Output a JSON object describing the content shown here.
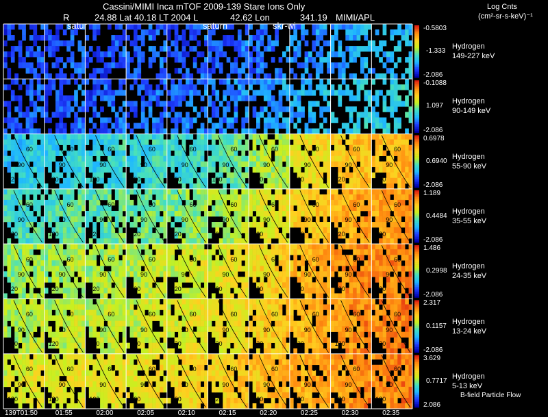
{
  "header": {
    "title": "Cassini/MIMI Inca mTOF  2009-139   Stare   Ions Only",
    "r_label": "R",
    "lat_text": "24.88 Lat 40.18 LT 2004 L",
    "lon_text": "42.62 Lon",
    "value_text": "341.19",
    "source": "MIMI/APL",
    "marker_saturn_1": "satur",
    "marker_saturn_2": "saturn",
    "marker_skr": "skr-wi",
    "units_title": "Log Cnts",
    "units": "(cm²-sr-s-keV)⁻¹",
    "footer_note": "B-field Particle Flow"
  },
  "colors": {
    "scale": [
      "#0000aa",
      "#1f3fff",
      "#1fb8ff",
      "#44e0c0",
      "#c8f020",
      "#ffd020",
      "#ff8c10",
      "#e02010"
    ],
    "background": "#000000",
    "divider": "#ffffff"
  },
  "chart_data": {
    "type": "heatmap",
    "description_time": "Stacked energy-channel image panels; each row is a time sequence of angular images",
    "time_labels": [
      "139T01:50",
      "01:55",
      "02:00",
      "02:05",
      "02:10",
      "02:15",
      "02:20",
      "02:25",
      "02:30",
      "02:35"
    ],
    "angle_labels": [
      "60",
      "90",
      "120",
      "30"
    ],
    "rows": [
      {
        "species": "Hydrogen",
        "energy": "149-227 keV",
        "cmax": "-0.5803",
        "cmid": "-1.333",
        "cmin": "-2.086",
        "intensity": [
          0.14,
          0.16,
          0.15,
          0.17,
          0.16,
          0.18,
          0.2,
          0.24,
          0.28,
          0.3
        ]
      },
      {
        "species": "Hydrogen",
        "energy": "90-149 keV",
        "cmax": "-0.1088",
        "cmid": "1.097",
        "cmin": "-2.086",
        "intensity": [
          0.16,
          0.17,
          0.17,
          0.18,
          0.2,
          0.22,
          0.26,
          0.3,
          0.34,
          0.36
        ]
      },
      {
        "species": "Hydrogen",
        "energy": "55-90 keV",
        "cmax": "0.6978",
        "cmid": "0.6940",
        "cmin": "-2.086",
        "intensity": [
          0.34,
          0.36,
          0.37,
          0.38,
          0.4,
          0.45,
          0.55,
          0.66,
          0.74,
          0.76
        ]
      },
      {
        "species": "Hydrogen",
        "energy": "35-55 keV",
        "cmax": "1.189",
        "cmid": "0.4484",
        "cmin": "-2.086",
        "intensity": [
          0.42,
          0.44,
          0.45,
          0.47,
          0.5,
          0.55,
          0.63,
          0.72,
          0.8,
          0.82
        ]
      },
      {
        "species": "Hydrogen",
        "energy": "24-35 keV",
        "cmax": "1.486",
        "cmid": "0.2998",
        "cmin": "-2.086",
        "intensity": [
          0.52,
          0.54,
          0.55,
          0.57,
          0.6,
          0.64,
          0.7,
          0.78,
          0.84,
          0.86
        ]
      },
      {
        "species": "Hydrogen",
        "energy": "13-24 keV",
        "cmax": "2.317",
        "cmid": "0.1157",
        "cmin": "-2.086",
        "intensity": [
          0.56,
          0.57,
          0.58,
          0.6,
          0.63,
          0.66,
          0.72,
          0.78,
          0.84,
          0.86
        ]
      },
      {
        "species": "Hydrogen",
        "energy": "5-13 keV",
        "cmax": "3.629",
        "cmid": "0.7717",
        "cmin": "2.086",
        "intensity": [
          0.62,
          0.63,
          0.64,
          0.66,
          0.68,
          0.72,
          0.76,
          0.8,
          0.84,
          0.86
        ]
      }
    ]
  }
}
